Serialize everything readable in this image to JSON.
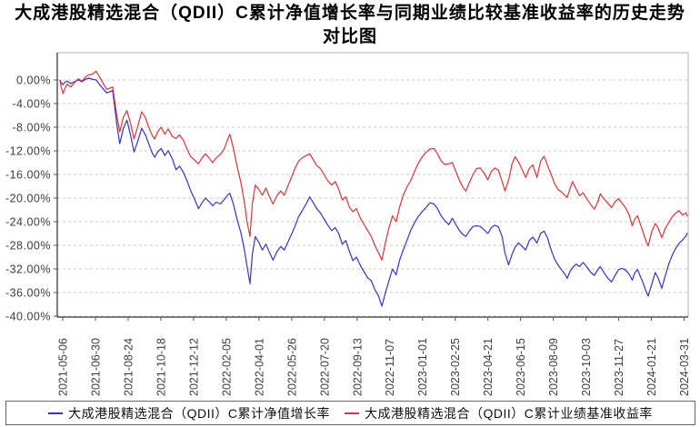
{
  "title": {
    "line1": "大成港股精选混合（QDII）C累计净值增长率与同期业绩比较基准收益率的历史走势",
    "line2": "对比图"
  },
  "legend": [
    {
      "label": "大成港股精选混合（QDII）C累计净值增长率",
      "color": "#3333cc",
      "marker": "line-dash"
    },
    {
      "label": "大成港股精选混合（QDII）C累计业绩基准收益率",
      "color": "#e03333",
      "marker": "line-dash"
    }
  ],
  "colors": {
    "fund_line": "#3333cc",
    "benchmark_line": "#e03333",
    "grid": "#c9c9c9",
    "axis": "#555555",
    "frame": "#b3b3b3",
    "tick_text": "#3d3d3d"
  },
  "chart_data": {
    "type": "line",
    "title": "大成港股精选混合（QDII）C累计净值增长率与同期业绩比较基准收益率的历史走势对比图",
    "xlabel": "",
    "ylabel": "",
    "ylim": [
      -40,
      4.6
    ],
    "grid": "horizontal-dashed",
    "legend_position": "bottom",
    "y_axis": {
      "unit": "%",
      "tick_labels": [
        "0.00%",
        "-4.00%",
        "-8.00%",
        "-12.00%",
        "-16.00%",
        "-20.00%",
        "-24.00%",
        "-28.00%",
        "-32.00%",
        "-36.00%",
        "-40.00%"
      ],
      "tick_values": [
        0,
        -4,
        -8,
        -12,
        -16,
        -20,
        -24,
        -28,
        -32,
        -36,
        -40
      ]
    },
    "x_axis": {
      "tick_labels": [
        "2021-05-06",
        "2021-06-30",
        "2021-08-24",
        "2021-10-18",
        "2021-12-12",
        "2022-02-05",
        "2022-04-01",
        "2022-05-26",
        "2022-07-20",
        "2022-09-13",
        "2022-11-07",
        "2023-01-01",
        "2023-02-25",
        "2023-04-21",
        "2023-06-15",
        "2023-08-09",
        "2023-10-03",
        "2023-11-27",
        "2024-01-21",
        "2024-03-31"
      ],
      "range": [
        "2021-05-06",
        "2024-03-31"
      ]
    },
    "dates": [
      "2021-05-06",
      "2021-05-08",
      "2021-05-11",
      "2021-05-14",
      "2021-05-18",
      "2021-05-24",
      "2021-05-30",
      "2021-06-06",
      "2021-06-12",
      "2021-06-18",
      "2021-06-24",
      "2021-06-30",
      "2021-07-06",
      "2021-07-12",
      "2021-07-18",
      "2021-07-24",
      "2021-08-03",
      "2021-08-10",
      "2021-08-15",
      "2021-08-21",
      "2021-08-27",
      "2021-09-02",
      "2021-09-08",
      "2021-09-14",
      "2021-09-21",
      "2021-09-27",
      "2021-10-03",
      "2021-10-09",
      "2021-10-13",
      "2021-10-18",
      "2021-10-24",
      "2021-10-30",
      "2021-11-05",
      "2021-11-12",
      "2021-11-18",
      "2021-11-24",
      "2021-12-01",
      "2021-12-07",
      "2021-12-13",
      "2021-12-20",
      "2021-12-26",
      "2022-01-01",
      "2022-01-07",
      "2022-01-13",
      "2022-01-19",
      "2022-01-25",
      "2022-02-01",
      "2022-02-07",
      "2022-02-13",
      "2022-02-17",
      "2022-02-23",
      "2022-03-01",
      "2022-03-08",
      "2022-03-14",
      "2022-03-18",
      "2022-03-23",
      "2022-03-27",
      "2022-04-01",
      "2022-04-07",
      "2022-04-13",
      "2022-04-19",
      "2022-04-25",
      "2022-05-01",
      "2022-05-08",
      "2022-05-14",
      "2022-05-20",
      "2022-05-26",
      "2022-06-01",
      "2022-06-07",
      "2022-06-13",
      "2022-06-19",
      "2022-06-26",
      "2022-07-02",
      "2022-07-08",
      "2022-07-14",
      "2022-07-20",
      "2022-07-26",
      "2022-08-01",
      "2022-08-08",
      "2022-08-14",
      "2022-08-20",
      "2022-08-26",
      "2022-09-01",
      "2022-09-07",
      "2022-09-13",
      "2022-09-19",
      "2022-09-26",
      "2022-10-02",
      "2022-10-08",
      "2022-10-14",
      "2022-10-20",
      "2022-10-26",
      "2022-11-01",
      "2022-11-07",
      "2022-11-13",
      "2022-11-19",
      "2022-11-25",
      "2022-12-01",
      "2022-12-07",
      "2022-12-14",
      "2022-12-20",
      "2022-12-26",
      "2023-01-01",
      "2023-01-07",
      "2023-01-13",
      "2023-01-21",
      "2023-01-28",
      "2023-02-03",
      "2023-02-09",
      "2023-02-15",
      "2023-02-22",
      "2023-02-28",
      "2023-03-06",
      "2023-03-12",
      "2023-03-18",
      "2023-03-23",
      "2023-03-29",
      "2023-04-04",
      "2023-04-10",
      "2023-04-16",
      "2023-04-23",
      "2023-04-29",
      "2023-05-05",
      "2023-05-11",
      "2023-05-17",
      "2023-05-23",
      "2023-05-28",
      "2023-06-03",
      "2023-06-09",
      "2023-06-14",
      "2023-06-20",
      "2023-06-26",
      "2023-07-02",
      "2023-07-08",
      "2023-07-14",
      "2023-07-21",
      "2023-07-27",
      "2023-08-02",
      "2023-08-08",
      "2023-08-14",
      "2023-08-20",
      "2023-08-26",
      "2023-09-01",
      "2023-09-07",
      "2023-09-10",
      "2023-09-15",
      "2023-09-19",
      "2023-09-25",
      "2023-10-01",
      "2023-10-07",
      "2023-10-13",
      "2023-10-20",
      "2023-10-26",
      "2023-11-01",
      "2023-11-05",
      "2023-11-11",
      "2023-11-18",
      "2023-11-24",
      "2023-11-30",
      "2023-12-06",
      "2023-12-12",
      "2023-12-18",
      "2023-12-24",
      "2023-12-29",
      "2024-01-02",
      "2024-01-07",
      "2024-01-11",
      "2024-01-16",
      "2024-01-21",
      "2024-01-25",
      "2024-01-31",
      "2024-02-06",
      "2024-02-11",
      "2024-02-17",
      "2024-02-23",
      "2024-02-29",
      "2024-03-06",
      "2024-03-11",
      "2024-03-17",
      "2024-03-23",
      "2024-03-29",
      "2024-03-31"
    ],
    "series": [
      {
        "name": "大成港股精选混合（QDII）C累计净值增长率",
        "color": "#3333cc",
        "unit": "%",
        "values": [
          0.0,
          -0.5,
          -0.8,
          -0.4,
          -0.2,
          -0.6,
          -0.3,
          0.0,
          -0.3,
          0.1,
          0.3,
          0.1,
          0.0,
          -0.8,
          -1.5,
          -2.2,
          -1.8,
          -7.5,
          -10.8,
          -8.2,
          -6.8,
          -9.3,
          -12.2,
          -10.5,
          -8.2,
          -9.2,
          -10.8,
          -12.4,
          -13.1,
          -12.2,
          -11.6,
          -12.8,
          -12.0,
          -13.4,
          -15.2,
          -14.6,
          -15.7,
          -17.2,
          -18.8,
          -20.3,
          -21.8,
          -20.8,
          -20.0,
          -20.6,
          -21.3,
          -20.7,
          -21.0,
          -20.3,
          -19.5,
          -19.2,
          -21.0,
          -23.5,
          -26.0,
          -29.0,
          -31.5,
          -34.5,
          -29.5,
          -26.5,
          -27.5,
          -28.8,
          -27.8,
          -29.2,
          -30.5,
          -29.0,
          -28.2,
          -28.8,
          -27.5,
          -26.2,
          -24.8,
          -23.2,
          -22.2,
          -21.0,
          -19.8,
          -20.8,
          -21.8,
          -22.5,
          -23.5,
          -24.5,
          -25.5,
          -25.0,
          -26.0,
          -27.8,
          -27.2,
          -29.0,
          -30.6,
          -30.0,
          -31.5,
          -32.5,
          -33.5,
          -34.0,
          -35.5,
          -36.5,
          -38.3,
          -36.0,
          -34.0,
          -32.0,
          -33.0,
          -30.5,
          -28.8,
          -27.0,
          -25.4,
          -24.2,
          -23.2,
          -22.4,
          -21.8,
          -20.8,
          -21.0,
          -21.8,
          -23.0,
          -23.8,
          -24.5,
          -23.4,
          -24.5,
          -25.5,
          -26.2,
          -26.5,
          -25.5,
          -24.8,
          -24.7,
          -24.8,
          -25.4,
          -26.0,
          -25.0,
          -24.6,
          -24.9,
          -26.5,
          -29.3,
          -31.3,
          -29.5,
          -28.3,
          -27.6,
          -28.2,
          -28.8,
          -27.2,
          -26.6,
          -27.6,
          -26.0,
          -25.6,
          -26.8,
          -28.8,
          -30.4,
          -31.4,
          -32.2,
          -33.0,
          -33.6,
          -32.4,
          -31.8,
          -31.2,
          -31.6,
          -30.9,
          -31.6,
          -32.6,
          -33.1,
          -32.1,
          -31.6,
          -32.6,
          -33.6,
          -34.2,
          -33.1,
          -32.1,
          -31.9,
          -32.2,
          -32.9,
          -33.9,
          -32.7,
          -32.1,
          -33.1,
          -34.3,
          -35.7,
          -36.6,
          -34.6,
          -32.6,
          -33.6,
          -35.3,
          -33.1,
          -31.1,
          -29.6,
          -28.6,
          -27.7,
          -27.1,
          -26.4,
          -25.9
        ]
      },
      {
        "name": "大成港股精选混合（QDII）C累计业绩基准收益率",
        "color": "#e03333",
        "unit": "%",
        "values": [
          0.0,
          -1.2,
          -2.3,
          -1.5,
          -0.7,
          -1.2,
          -0.5,
          0.2,
          -0.2,
          0.5,
          0.9,
          1.0,
          1.5,
          0.5,
          -0.6,
          -1.6,
          -1.2,
          -6.0,
          -8.8,
          -6.3,
          -5.2,
          -7.3,
          -10.0,
          -8.0,
          -5.4,
          -6.3,
          -8.0,
          -9.4,
          -10.0,
          -8.8,
          -8.0,
          -9.2,
          -8.3,
          -9.6,
          -9.9,
          -9.3,
          -10.3,
          -11.8,
          -13.0,
          -13.6,
          -14.2,
          -13.2,
          -12.5,
          -13.2,
          -14.0,
          -13.2,
          -12.6,
          -11.8,
          -10.2,
          -9.2,
          -11.5,
          -14.5,
          -17.5,
          -21.0,
          -24.0,
          -26.5,
          -21.0,
          -17.8,
          -18.5,
          -19.5,
          -18.3,
          -19.8,
          -21.0,
          -19.5,
          -18.8,
          -19.5,
          -18.0,
          -16.5,
          -15.0,
          -13.8,
          -13.2,
          -12.8,
          -12.5,
          -13.5,
          -14.5,
          -15.0,
          -16.0,
          -17.0,
          -17.8,
          -17.2,
          -18.5,
          -20.3,
          -19.8,
          -21.5,
          -22.3,
          -21.8,
          -23.5,
          -24.5,
          -25.5,
          -26.5,
          -28.0,
          -29.2,
          -30.5,
          -27.5,
          -25.0,
          -23.0,
          -24.0,
          -21.5,
          -19.5,
          -18.0,
          -17.0,
          -15.5,
          -14.2,
          -13.2,
          -12.4,
          -11.7,
          -11.6,
          -12.5,
          -13.7,
          -14.3,
          -14.2,
          -14.0,
          -15.5,
          -17.0,
          -18.2,
          -18.8,
          -17.3,
          -16.0,
          -15.0,
          -14.9,
          -15.8,
          -16.9,
          -15.5,
          -14.9,
          -15.3,
          -17.2,
          -18.8,
          -17.0,
          -14.2,
          -13.0,
          -13.9,
          -15.2,
          -16.5,
          -15.0,
          -14.4,
          -16.5,
          -13.8,
          -12.9,
          -14.5,
          -16.0,
          -17.6,
          -18.6,
          -19.0,
          -19.6,
          -19.9,
          -18.4,
          -17.2,
          -18.4,
          -19.6,
          -19.1,
          -20.1,
          -21.1,
          -21.9,
          -20.6,
          -19.3,
          -20.1,
          -20.9,
          -21.6,
          -20.6,
          -20.1,
          -20.9,
          -21.7,
          -22.9,
          -24.7,
          -23.6,
          -23.0,
          -24.2,
          -25.7,
          -27.2,
          -28.1,
          -25.7,
          -24.3,
          -25.1,
          -26.7,
          -25.1,
          -24.1,
          -23.1,
          -22.6,
          -22.1,
          -22.9,
          -22.5,
          -23.1
        ]
      }
    ]
  }
}
